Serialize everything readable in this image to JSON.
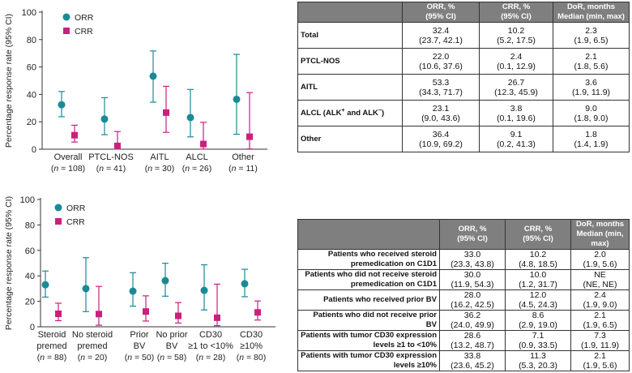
{
  "colors": {
    "orr": "#1a8a96",
    "crr": "#cc1f7e"
  },
  "chart_data": [
    {
      "type": "scatter",
      "title": "",
      "ylabel": "Percentage response rate (95% CI)",
      "ylim": [
        0,
        100
      ],
      "yticks": [
        0,
        20,
        40,
        60,
        80,
        100
      ],
      "legend": [
        "ORR",
        "CRR"
      ],
      "categories": [
        {
          "label": "Overall",
          "n": "(n = 108)"
        },
        {
          "label": "PTCL-NOS",
          "n": "(n = 41)"
        },
        {
          "label": "AITL",
          "n": "(n = 30)"
        },
        {
          "label": "ALCL",
          "n": "(n = 26)"
        },
        {
          "label": "Other",
          "n": "(n = 11)"
        }
      ],
      "series": [
        {
          "name": "ORR",
          "values": [
            32.4,
            22.0,
            53.3,
            23.1,
            36.4
          ],
          "lower": [
            23.7,
            10.6,
            34.3,
            9.0,
            10.9
          ],
          "upper": [
            42.1,
            37.6,
            71.7,
            43.6,
            69.2
          ]
        },
        {
          "name": "CRR",
          "values": [
            10.2,
            2.4,
            26.7,
            3.8,
            9.1
          ],
          "lower": [
            5.2,
            0.1,
            12.3,
            0.1,
            0.2
          ],
          "upper": [
            17.5,
            12.9,
            45.9,
            19.6,
            41.3
          ]
        }
      ]
    },
    {
      "type": "scatter",
      "title": "",
      "ylabel": "Percentage response rate (95% CI)",
      "ylim": [
        0,
        100
      ],
      "yticks": [
        0,
        20,
        40,
        60,
        80,
        100
      ],
      "legend": [
        "ORR",
        "CRR"
      ],
      "categories": [
        {
          "label": [
            "Steroid",
            "premed"
          ],
          "n": "(n = 88)"
        },
        {
          "label": [
            "No steroid",
            "premed"
          ],
          "n": "(n = 20)"
        },
        {
          "label": [
            "Prior",
            "BV"
          ],
          "n": "(n = 50)"
        },
        {
          "label": [
            "No prior",
            "BV"
          ],
          "n": "(n = 58)"
        },
        {
          "label": [
            "CD30",
            "≥1 to <10%"
          ],
          "n": "(n = 28)"
        },
        {
          "label": [
            "CD30",
            "≥10%"
          ],
          "n": "(n = 80)"
        }
      ],
      "series": [
        {
          "name": "ORR",
          "values": [
            33.0,
            30.0,
            28.0,
            36.2,
            28.6,
            33.8
          ],
          "lower": [
            23.3,
            11.9,
            16.2,
            24.0,
            13.2,
            23.6
          ],
          "upper": [
            43.8,
            54.3,
            42.5,
            49.9,
            48.7,
            45.2
          ]
        },
        {
          "name": "CRR",
          "values": [
            10.2,
            10.0,
            12.0,
            8.6,
            7.1,
            11.3
          ],
          "lower": [
            4.8,
            1.2,
            4.5,
            2.9,
            0.9,
            5.3
          ],
          "upper": [
            18.5,
            31.7,
            24.3,
            19.0,
            33.5,
            20.3
          ]
        }
      ]
    }
  ],
  "table_top": {
    "headers": [
      "ORR, %\n(95% CI)",
      "CRR, %\n(95% CI)",
      "DoR, months\nMedian (min, max)"
    ],
    "rows": [
      {
        "label": "Total",
        "orr": "32.4",
        "orr_ci": "(23.7, 42.1)",
        "crr": "10.2",
        "crr_ci": "(5.2, 17.5)",
        "dor": "2.3",
        "dor_range": "(1.9, 6.5)"
      },
      {
        "label": "PTCL-NOS",
        "orr": "22.0",
        "orr_ci": "(10.6, 37.6)",
        "crr": "2.4",
        "crr_ci": "(0.1, 12.9)",
        "dor": "2.1",
        "dor_range": "(1.8, 5.6)"
      },
      {
        "label": "AITL",
        "orr": "53.3",
        "orr_ci": "(34.3, 71.7)",
        "crr": "26.7",
        "crr_ci": "(12.3, 45.9)",
        "dor": "3.6",
        "dor_range": "(1.9, 11.9)"
      },
      {
        "label": "ALCL (ALK+ and ALK−)",
        "orr": "23.1",
        "orr_ci": "(9.0, 43.6)",
        "crr": "3.8",
        "crr_ci": "(0.1, 19.6)",
        "dor": "9.0",
        "dor_range": "(1.8, 9.0)"
      },
      {
        "label": "Other",
        "orr": "36.4",
        "orr_ci": "(10.9, 69.2)",
        "crr": "9.1",
        "crr_ci": "(0.2, 41.3)",
        "dor": "1.8",
        "dor_range": "(1.4, 1.9)"
      }
    ]
  },
  "table_bottom": {
    "headers": [
      "ORR, %\n(95% CI)",
      "CRR, %\n(95% CI)",
      "DoR, months\nMedian (min, max)"
    ],
    "rows": [
      {
        "label": "Patients who received steroid premedication on C1D1",
        "orr": "33.0",
        "orr_ci": "(23.3, 43.8)",
        "crr": "10.2",
        "crr_ci": "(4.8, 18.5)",
        "dor": "2.0",
        "dor_range": "(1.9, 5.6)"
      },
      {
        "label": "Patients who did not receive steroid premedication on C1D1",
        "orr": "30.0",
        "orr_ci": "(11.9, 54.3)",
        "crr": "10.0",
        "crr_ci": "(1.2, 31.7)",
        "dor": "NE",
        "dor_range": "(NE, NE)"
      },
      {
        "label": "Patients who received prior BV",
        "orr": "28.0",
        "orr_ci": "(16.2, 42.5)",
        "crr": "12.0",
        "crr_ci": "(4.5, 24.3)",
        "dor": "2.4",
        "dor_range": "(1.9, 9.0)"
      },
      {
        "label": "Patients who did not receive prior BV",
        "orr": "36.2",
        "orr_ci": "(24.0, 49.9)",
        "crr": "8.6",
        "crr_ci": "(2.9, 19.0)",
        "dor": "2.1",
        "dor_range": "(1.9, 6.5)"
      },
      {
        "label": "Patients with tumor CD30 expression levels ≥1 to <10%",
        "orr": "28.6",
        "orr_ci": "(13.2, 48.7)",
        "crr": "7.1",
        "crr_ci": "(0.9, 33.5)",
        "dor": "7.3",
        "dor_range": "(1.9, 11.9)"
      },
      {
        "label": "Patients with tumor CD30 expression levels ≥10%",
        "orr": "33.8",
        "orr_ci": "(23.6, 45.2)",
        "crr": "11.3",
        "crr_ci": "(5.3, 20.3)",
        "dor": "2.1",
        "dor_range": "(1.9, 5.6)"
      }
    ]
  }
}
